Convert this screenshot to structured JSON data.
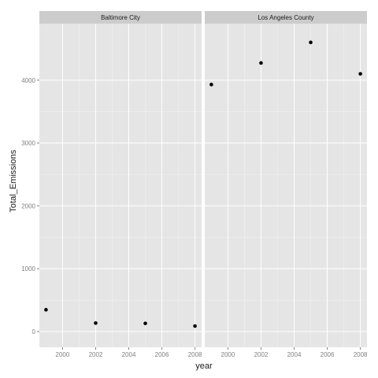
{
  "chart_data": {
    "type": "scatter",
    "xlabel": "year",
    "ylabel": "Total_Emissions",
    "xlim": [
      1998.6,
      2008.4
    ],
    "ylim": [
      -250,
      4900
    ],
    "x_ticks": [
      2000,
      2002,
      2004,
      2006,
      2008
    ],
    "y_ticks": [
      0,
      1000,
      2000,
      3000,
      4000
    ],
    "grid": true,
    "facets": [
      {
        "name": "Baltimore City",
        "x": [
          1999,
          2002,
          2005,
          2008
        ],
        "y": [
          347,
          135,
          130,
          88
        ]
      },
      {
        "name": "Los Angeles County",
        "x": [
          1999,
          2002,
          2005,
          2008
        ],
        "y": [
          3931,
          4274,
          4601,
          4101
        ]
      }
    ]
  }
}
